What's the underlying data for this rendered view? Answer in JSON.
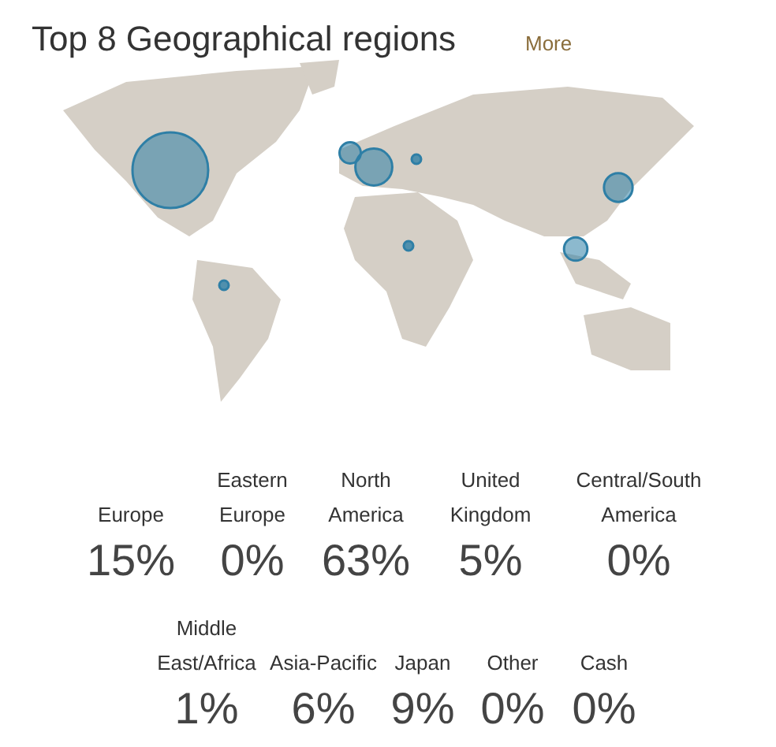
{
  "chart_data": {
    "type": "other",
    "title": "Top 8 Geographical regions",
    "annotations": [
      "More"
    ],
    "categories": [
      "Europe",
      "Eastern Europe",
      "North America",
      "United Kingdom",
      "Central/South America",
      "Middle East/Africa",
      "Asia-Pacific",
      "Japan",
      "Other",
      "Cash"
    ],
    "values": [
      15,
      0,
      63,
      5,
      0,
      1,
      6,
      9,
      0,
      0
    ],
    "value_labels": [
      "15%",
      "0%",
      "63%",
      "5%",
      "0%",
      "1%",
      "6%",
      "9%",
      "0%",
      "0%"
    ],
    "color": "#2e7fa6"
  }
}
